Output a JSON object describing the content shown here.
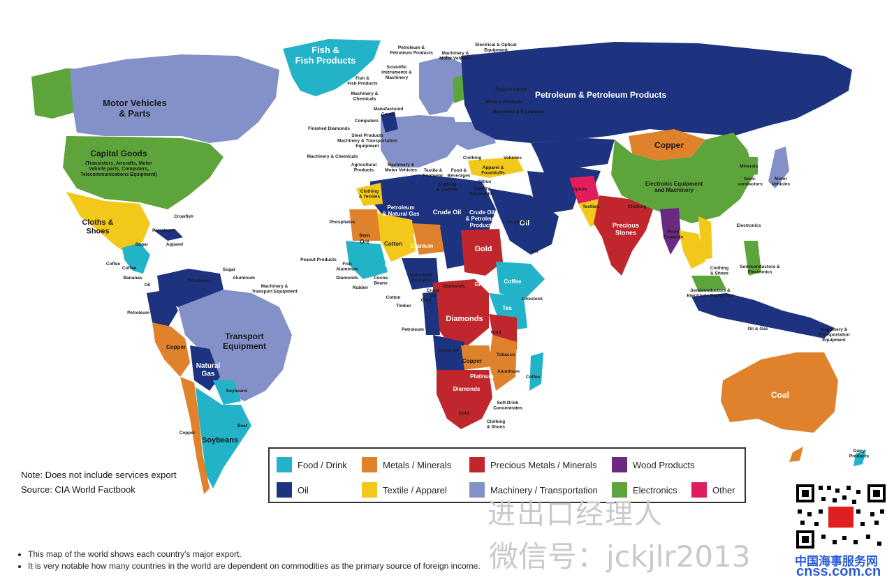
{
  "colors": {
    "food": "#22b3c9",
    "oil": "#1e3380",
    "metals": "#e0822b",
    "textile": "#f2c81a",
    "precious": "#c0272d",
    "machinery": "#8391c8",
    "wood": "#6a2a82",
    "electronics": "#5da53a",
    "other": "#e21d5b"
  },
  "labels": {
    "fish": "Fish &\nFish Products",
    "motor_vehicles": "Motor Vehicles\n& Parts",
    "capital_goods": "Capital Goods",
    "capital_goods_sub": "(Transistors, Aircrafts, Motor\nVehicle parts, Computers,\nTelecommunications Equipment)",
    "cloths": "Cloths &\nShoes",
    "petroleum_russia": "Petroleum & Petroleum Products",
    "copper_mongolia": "Copper",
    "china": "Electronic Equipment\nand Machinery",
    "transport_eq": "Transport\nEquipment",
    "natural_gas": "Natural\nGas",
    "soybeans": "Soybeans",
    "coal": "Coal",
    "gold_sudan": "Gold",
    "diamonds_congo": "Diamonds",
    "crude_oil": "Crude Oil",
    "oil_saudi": "Oil",
    "precious_stones": "Precious\nStones",
    "petroleum_algeria": "Petroleum\n& Natural Gas",
    "crude_petroleum_libya": "Crude Oil\n& Petroleum\nProducts",
    "iron_ore": "Iron\nOre",
    "cotton": "Cotton",
    "uranium": "Uranium",
    "copper_peru": "Copper",
    "copper_zambia": "Copper",
    "platinum": "Platinum",
    "diamonds_south": "Diamonds",
    "coffee": "Coffee",
    "tea": "Tea",
    "grains": "Grains",
    "gold_mali": "Gold"
  },
  "small_labels": [
    "Petroleum &\nPetroleum Products",
    "Machinery &\nMotor Vehicles",
    "Electrical & Optical\nEquipment",
    "Scientific\nInstruments &\nMachinery",
    "Fish &\nFish Products",
    "Machinery &\nChemicals",
    "Manufactured\nGoods",
    "Computers",
    "Finished Diamonds",
    "Steel Products\nMachinery & Transportation\nEquipment",
    "Machinery & Chemicals",
    "Agricultural\nProducts",
    "Machinery &\nMotor Vehicles",
    "Food Products",
    "Mineral Products",
    "Machinery & Equipment",
    "Vehicles",
    "Apparel &\nFoodstuffs",
    "Clothing",
    "Textile &\nFootwear",
    "Food &\nBeverages",
    "Citrus",
    "Jewelry\nElectronics",
    "Clothing\n& Textiles",
    "Clothing\n& Textiles",
    "Phosphates",
    "Peanut Products",
    "Fish\nAluminum",
    "Diamonds",
    "Rubber",
    "Cocoa\nBeans",
    "Cotton",
    "Timber",
    "Petroleum",
    "Opium",
    "Textiles",
    "Clothing",
    "Minerals",
    "Semi-\nconductors",
    "Motor\nVehicles",
    "Electronics",
    "Semiconductors &\nElectronics",
    "Semiconductors &\nElectronic Equipment",
    "Clothing\n& Shoes",
    "Oil & Gas",
    "Machinery &\nTransportation\nEquipment",
    "Livestock",
    "Coffee",
    "Tobacco",
    "Aluminum",
    "Soft Drink\nConcentrates",
    "Clothing\n& Shoes",
    "Gold",
    "Dairy\nProducts",
    "Crowfish",
    "Petroleum",
    "Apparel",
    "Sugar",
    "Sugar",
    "Aluminum",
    "Machinery &\nTransport Equipment",
    "Coffee",
    "Coffee",
    "Bananas",
    "Oil",
    "Petroleum",
    "Petroleum",
    "Soybeans",
    "Beef",
    "Copper",
    "Wood\nProducts",
    "Gold",
    "Crude\nOil",
    "Petroleum\nProducts",
    "Diamonds",
    "Gold",
    "Crude Oil",
    "Crude Oil",
    "Oil"
  ],
  "legend": [
    {
      "key": "food",
      "label": "Food / Drink"
    },
    {
      "key": "metals",
      "label": "Metals / Minerals"
    },
    {
      "key": "precious",
      "label": "Precious Metals / Minerals"
    },
    {
      "key": "wood",
      "label": "Wood Products"
    },
    {
      "key": "oil",
      "label": "Oil"
    },
    {
      "key": "textile",
      "label": "Textile / Apparel"
    },
    {
      "key": "machinery",
      "label": "Machinery / Transportation"
    },
    {
      "key": "electronics",
      "label": "Electronics"
    },
    {
      "key": "other",
      "label": "Other"
    }
  ],
  "note": "Note: Does not include services export",
  "source": "Source: CIA World Factbook",
  "bullets": [
    "This map of the world shows each country's major export.",
    "It is very notable how many countries in the world are dependent on commodities as the primary source of foreign income."
  ],
  "watermark_line1": "进出口经理人",
  "watermark_line2": "微信号：jckjlr2013",
  "site_cn": "中国海事服务网",
  "site_url": "cnss.com.cn"
}
